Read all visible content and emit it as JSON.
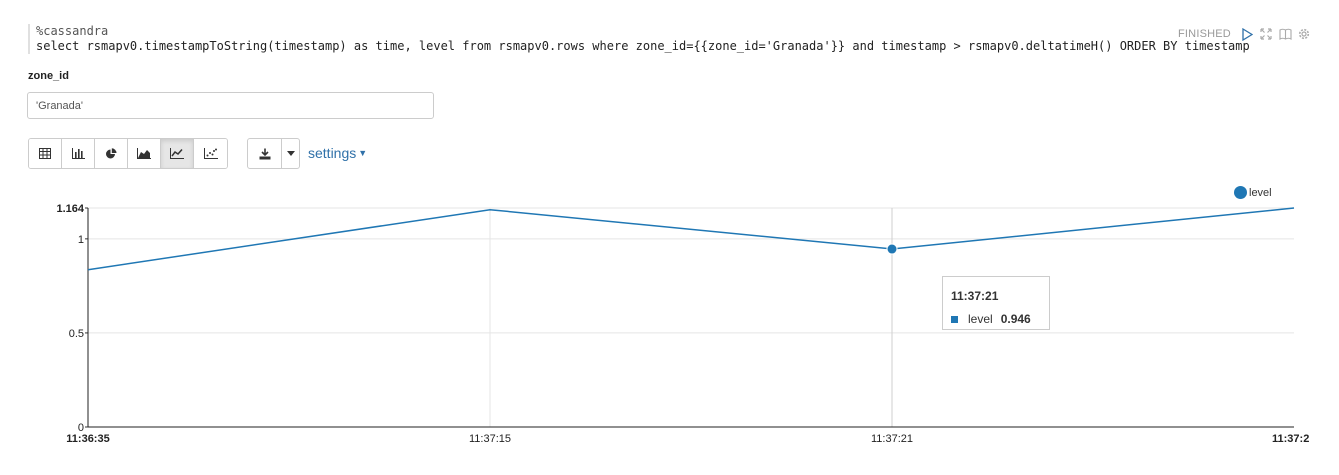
{
  "paragraph": {
    "code_magic": "%cassandra",
    "code_query": "select rsmapv0.timestampToString(timestamp) as time, level from rsmapv0.rows where zone_id={{zone_id='Granada'}} and timestamp > rsmapv0.deltatimeH() ORDER BY timestamp ASC;",
    "status": "FINISHED",
    "controls": {
      "run": "run-icon",
      "expand": "expand-icon",
      "book": "book-icon",
      "gear": "gear-icon"
    }
  },
  "form": {
    "zone_label": "zone_id",
    "zone_value": "'Granada'"
  },
  "toolbar": {
    "views": [
      "table-icon",
      "bar-chart-icon",
      "pie-chart-icon",
      "area-chart-icon",
      "line-chart-icon",
      "scatter-chart-icon"
    ],
    "active_view": "line-chart-icon",
    "download_icon": "download-icon",
    "settings_label": "settings"
  },
  "tooltip": {
    "title": "11:37:21",
    "series": "level",
    "value": "0.946"
  },
  "chart_data": {
    "type": "line",
    "categories": [
      "11:36:35",
      "11:37:15",
      "11:37:21",
      "11:37:2"
    ],
    "series": [
      {
        "name": "level",
        "values": [
          0.836,
          1.155,
          0.946,
          1.164
        ]
      }
    ],
    "ylim": [
      0,
      1.164
    ],
    "yticks": [
      "0",
      "0.5",
      "1",
      "1.164"
    ],
    "grid": true,
    "legend": "top-right",
    "highlight_index": 2,
    "colors": {
      "line": "#1f77b4"
    }
  }
}
